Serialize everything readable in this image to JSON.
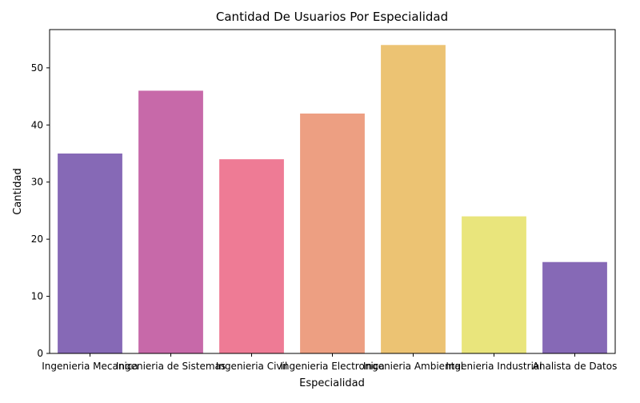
{
  "chart_data": {
    "type": "bar",
    "title": "Cantidad De Usuarios Por Especialidad",
    "xlabel": "Especialidad",
    "ylabel": "Cantidad",
    "categories": [
      "Ingenieria Mecanica",
      "Ingenieria de Sistemas",
      "Ingenieria Civil",
      "Ingenieria Electronica",
      "Ingenieria Ambiental",
      "Ingenieria Industrial",
      "Analista de Datos"
    ],
    "values": [
      35,
      46,
      34,
      42,
      54,
      24,
      16
    ],
    "colors": [
      "#8669b6",
      "#c769a9",
      "#ee7b95",
      "#ed9f82",
      "#ecc373",
      "#e9e57c",
      "#8669b6"
    ],
    "ylim": [
      0,
      56.7
    ],
    "yticks": [
      0,
      10,
      20,
      30,
      40,
      50
    ],
    "grid": false,
    "legend": "none"
  }
}
